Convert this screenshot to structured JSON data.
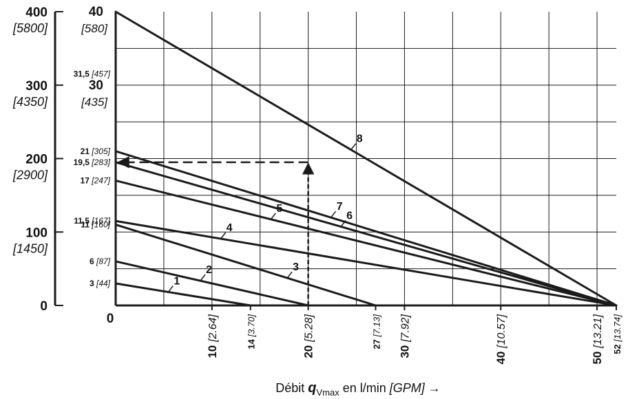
{
  "chart_data": {
    "type": "line",
    "title": "",
    "xlabel": {
      "prefix": "Débit ",
      "q": "q",
      "sub": "Vmax",
      "mid": " en l/min ",
      "unit": "[GPM]",
      "arrow": " →"
    },
    "ylabel": "",
    "xlim": [
      0,
      52
    ],
    "ylim": [
      0,
      40
    ],
    "colors": {
      "line": "#1a1a1a",
      "grid": "#1a1a1a",
      "guide": "#1a1a1a",
      "background": "#ffffff"
    },
    "grid": true,
    "x_origin_label": "0",
    "x_ticks": [
      {
        "x": 10,
        "main": "10",
        "alt": "[2.64]",
        "big": true
      },
      {
        "x": 14,
        "main": "14",
        "alt": "[3.70]",
        "big": false
      },
      {
        "x": 20,
        "main": "20",
        "alt": "[5.28]",
        "big": true
      },
      {
        "x": 27,
        "main": "27",
        "alt": "[7.13]",
        "big": false
      },
      {
        "x": 30,
        "main": "30",
        "alt": "[7.92]",
        "big": true
      },
      {
        "x": 40,
        "main": "40",
        "alt": "[10.57]",
        "big": true
      },
      {
        "x": 50,
        "main": "50",
        "alt": "[13.21]",
        "big": true
      },
      {
        "x": 52,
        "main": "52",
        "alt": "[13.74]",
        "big": false
      }
    ],
    "left_axis_ticks": [
      {
        "y": 0,
        "main": "0",
        "alt": ""
      },
      {
        "y": 10,
        "main": "100",
        "alt": "[1450]"
      },
      {
        "y": 20,
        "main": "200",
        "alt": "[2900]"
      },
      {
        "y": 30,
        "main": "300",
        "alt": "[4350]"
      },
      {
        "y": 40,
        "main": "400",
        "alt": "[5800]"
      }
    ],
    "inner_axis_major": [
      {
        "y": 40,
        "main": "40",
        "alt": "[580]"
      },
      {
        "y": 30,
        "main": "30",
        "alt": "[435]"
      }
    ],
    "inner_axis_minor": [
      {
        "y": 31.5,
        "main": "31,5",
        "alt": "[457]"
      },
      {
        "y": 21,
        "main": "21",
        "alt": "[305]"
      },
      {
        "y": 19.5,
        "main": "19,5",
        "alt": "[283]"
      },
      {
        "y": 17,
        "main": "17",
        "alt": "[247]"
      },
      {
        "y": 11.5,
        "main": "11,5",
        "alt": "[167]"
      },
      {
        "y": 11,
        "main": "11",
        "alt": "[160]"
      },
      {
        "y": 6,
        "main": "6",
        "alt": "[87]"
      },
      {
        "y": 3,
        "main": "3",
        "alt": "[44]"
      }
    ],
    "series": [
      {
        "name": "1",
        "x": [
          0,
          14
        ],
        "y": [
          3,
          0
        ]
      },
      {
        "name": "2",
        "x": [
          0,
          20
        ],
        "y": [
          6,
          0
        ]
      },
      {
        "name": "3",
        "x": [
          0,
          27
        ],
        "y": [
          11,
          0
        ]
      },
      {
        "name": "4",
        "x": [
          0,
          52
        ],
        "y": [
          11.5,
          0
        ]
      },
      {
        "name": "5",
        "x": [
          0,
          52
        ],
        "y": [
          17,
          0
        ]
      },
      {
        "name": "6",
        "x": [
          0,
          52
        ],
        "y": [
          19.5,
          0
        ]
      },
      {
        "name": "7",
        "x": [
          0,
          52
        ],
        "y": [
          21,
          0
        ]
      },
      {
        "name": "8",
        "x": [
          0,
          52
        ],
        "y": [
          40,
          0
        ]
      }
    ],
    "example_guide": {
      "x": 20,
      "y": 19.5
    }
  }
}
